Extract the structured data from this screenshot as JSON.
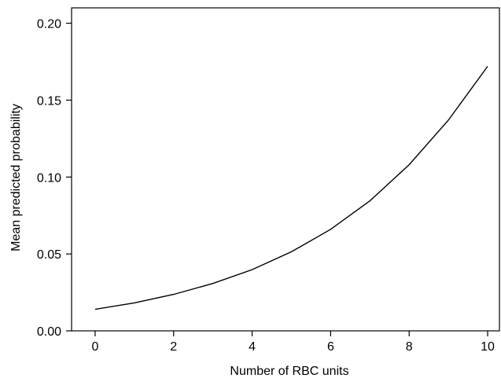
{
  "chart_data": {
    "type": "line",
    "xlabel": "Number of RBC units",
    "ylabel": "Mean predicted probability",
    "xlim": [
      -0.6,
      10.3
    ],
    "ylim": [
      0,
      0.21
    ],
    "xticks": [
      "0",
      "2",
      "4",
      "6",
      "8",
      "10"
    ],
    "yticks": [
      "0.00",
      "0.05",
      "0.10",
      "0.15",
      "0.20"
    ],
    "grid": false,
    "series": [
      {
        "x": [
          0,
          1,
          2,
          3,
          4,
          5,
          6,
          7,
          8,
          9,
          10
        ],
        "y": [
          0.014,
          0.0182,
          0.0237,
          0.0308,
          0.0398,
          0.0514,
          0.066,
          0.0845,
          0.108,
          0.137,
          0.172
        ],
        "color": "#000000"
      }
    ]
  }
}
